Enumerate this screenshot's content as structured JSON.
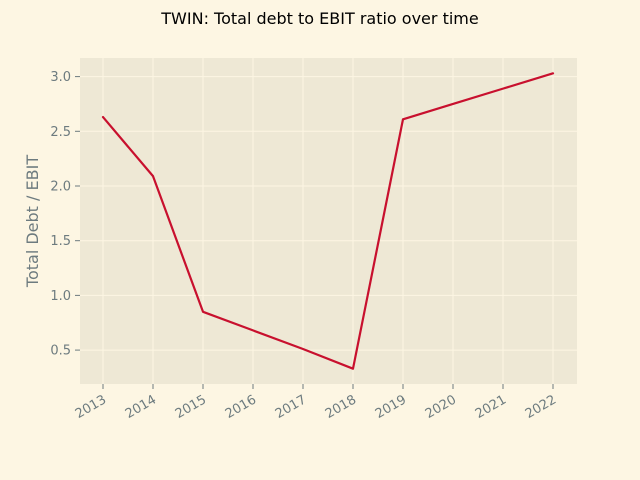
{
  "chart_data": {
    "type": "line",
    "title": "TWIN: Total debt to EBIT ratio over time",
    "xlabel": "",
    "ylabel": "Total Debt / EBIT",
    "x": [
      "2013",
      "2014",
      "2015",
      "2016",
      "2017",
      "2018",
      "2019",
      "2020",
      "2021",
      "2022"
    ],
    "series": [
      {
        "values": [
          2.63,
          2.09,
          0.85,
          0.68,
          0.51,
          0.33,
          2.61,
          2.75,
          2.89,
          3.03
        ]
      }
    ],
    "y_ticks": [
      "0.5",
      "1.0",
      "1.5",
      "2.0",
      "2.5",
      "3.0"
    ],
    "ylim": [
      0.19,
      3.17
    ],
    "grid": true,
    "colors": {
      "page_background": "#fdf6e3",
      "plot_background": "#eee8d5",
      "grid": "#fdf6e3",
      "line": "#c8102e",
      "tick_text": "#6d7b7f"
    }
  }
}
